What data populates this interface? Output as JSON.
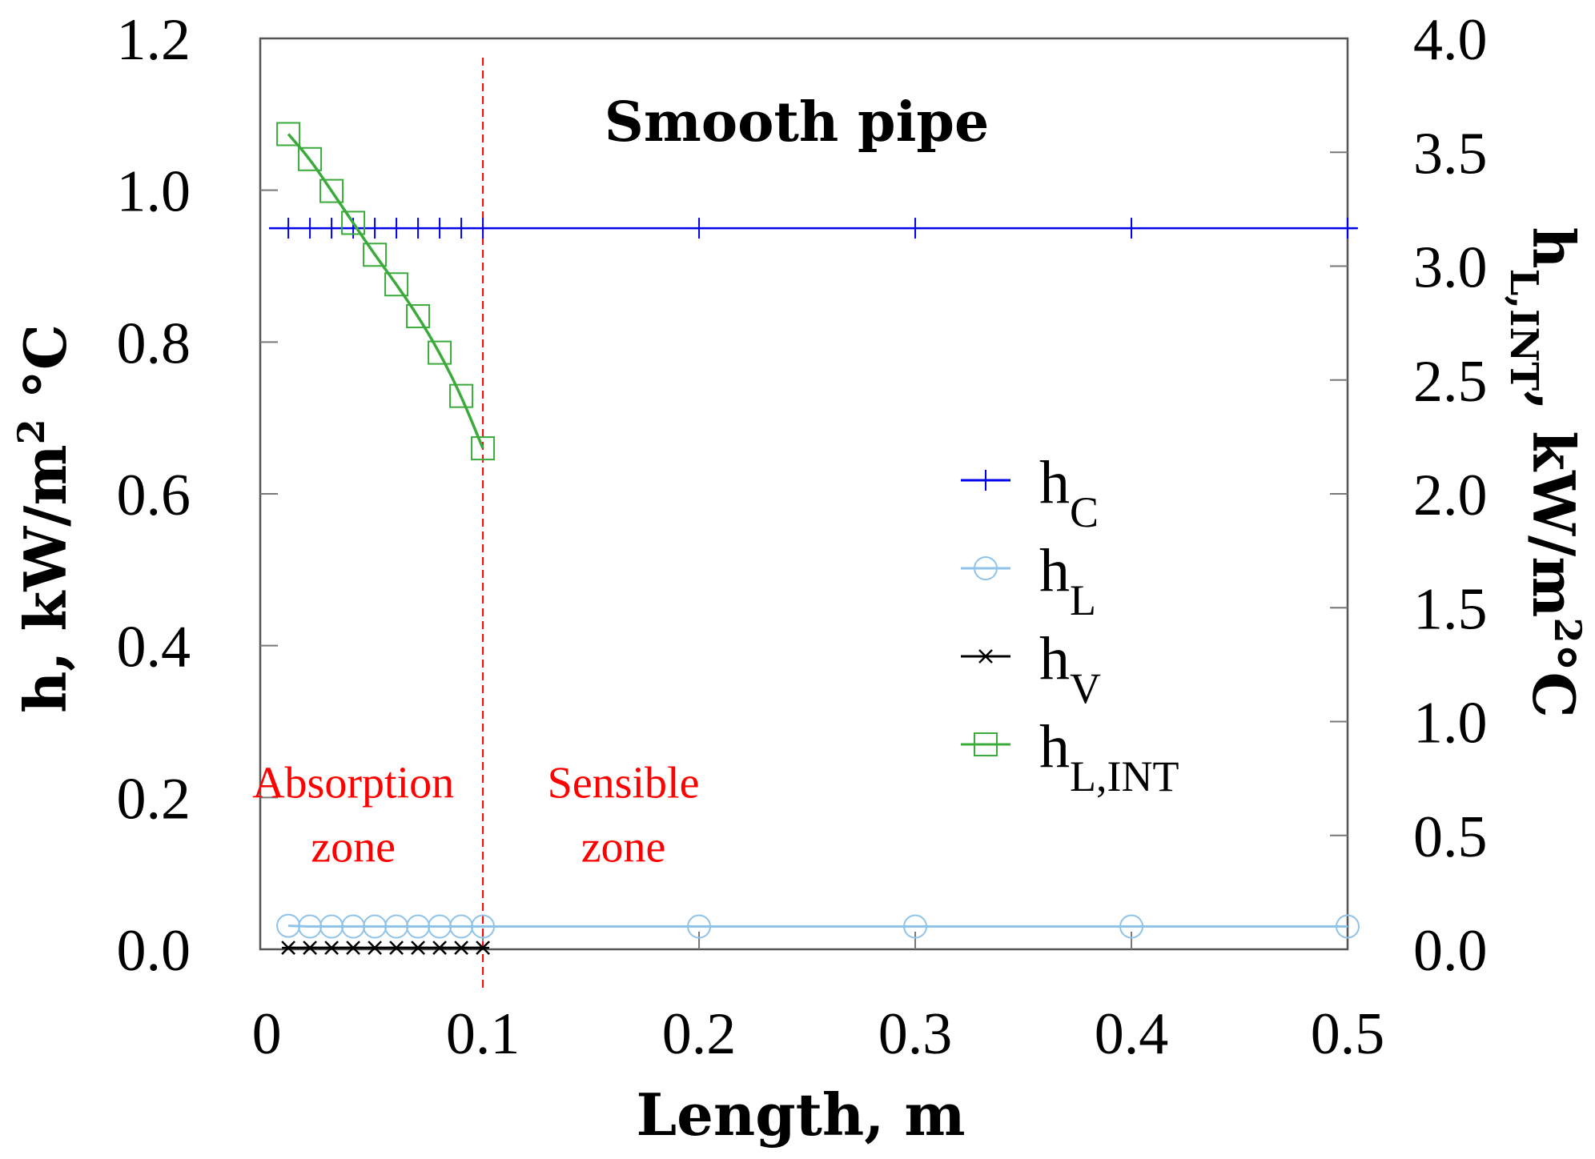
{
  "chart_data": {
    "type": "line",
    "title": "Smooth pipe",
    "xlabel": "Length, m",
    "ylabel": {
      "main": "h, kW/m",
      "sup": "2",
      "end": " °C"
    },
    "y2label": {
      "main": "h",
      "sub": "L,INT",
      "mid": ", kW/m",
      "sup": "2",
      "end": "°C"
    },
    "xlim": [
      -0.003,
      0.5
    ],
    "ylim": [
      0,
      1.2
    ],
    "y2lim": [
      0,
      4.0
    ],
    "x_ticks": [
      0,
      0.1,
      0.2,
      0.3,
      0.4,
      0.5
    ],
    "x_tick_labels": [
      "0",
      "0.1",
      "0.2",
      "0.3",
      "0.4",
      "0.5"
    ],
    "y_ticks": [
      0,
      0.2,
      0.4,
      0.6,
      0.8,
      1.0,
      1.2
    ],
    "y_tick_labels": [
      "0.0",
      "0.2",
      "0.4",
      "0.6",
      "0.8",
      "1.0",
      "1.2"
    ],
    "y2_ticks": [
      0,
      0.5,
      1.0,
      1.5,
      2.0,
      2.5,
      3.0,
      3.5,
      4.0
    ],
    "y2_tick_labels": [
      "0.0",
      "0.5",
      "1.0",
      "1.5",
      "2.0",
      "2.5",
      "3.0",
      "3.5",
      "4.0"
    ],
    "series": [
      {
        "name": "h_C",
        "label_main": "h",
        "label_sub": "C",
        "axis": "left",
        "marker": "plus",
        "color": "#0000ee",
        "x": [
          0.01,
          0.02,
          0.03,
          0.04,
          0.05,
          0.06,
          0.07,
          0.08,
          0.09,
          0.1,
          0.2,
          0.3,
          0.4,
          0.5
        ],
        "values": [
          0.95,
          0.95,
          0.95,
          0.95,
          0.95,
          0.95,
          0.95,
          0.95,
          0.95,
          0.95,
          0.95,
          0.95,
          0.95,
          0.95
        ]
      },
      {
        "name": "h_L",
        "label_main": "h",
        "label_sub": "L",
        "axis": "left",
        "marker": "circle",
        "color": "#8fc3e9",
        "x": [
          0.01,
          0.02,
          0.03,
          0.04,
          0.05,
          0.06,
          0.07,
          0.08,
          0.09,
          0.1,
          0.2,
          0.3,
          0.4,
          0.5
        ],
        "values": [
          0.031,
          0.03,
          0.03,
          0.03,
          0.03,
          0.03,
          0.03,
          0.03,
          0.03,
          0.03,
          0.03,
          0.03,
          0.03,
          0.03
        ]
      },
      {
        "name": "h_V",
        "label_main": "h",
        "label_sub": "V",
        "axis": "left",
        "marker": "star",
        "color": "#000000",
        "x": [
          0.01,
          0.02,
          0.03,
          0.04,
          0.05,
          0.06,
          0.07,
          0.08,
          0.09,
          0.1
        ],
        "values": [
          0.002,
          0.002,
          0.002,
          0.002,
          0.002,
          0.002,
          0.002,
          0.002,
          0.002,
          0.002
        ]
      },
      {
        "name": "h_L,INT",
        "label_main": "h",
        "label_sub": "L,INT",
        "axis": "right",
        "marker": "square",
        "color": "#3aaa3a",
        "x": [
          0.01,
          0.02,
          0.03,
          0.04,
          0.05,
          0.06,
          0.07,
          0.08,
          0.09,
          0.1
        ],
        "values": [
          3.58,
          3.47,
          3.33,
          3.19,
          3.05,
          2.92,
          2.78,
          2.62,
          2.43,
          2.2
        ]
      }
    ],
    "vline": {
      "x": 0.1,
      "color": "#ff0000",
      "style": "dashed"
    },
    "annotations": [
      {
        "lines": [
          "Absorption",
          "zone"
        ],
        "x": 0.04,
        "y": 0.2,
        "color": "#ff0000"
      },
      {
        "lines": [
          "Sensible",
          "zone"
        ],
        "x": 0.165,
        "y": 0.2,
        "color": "#ff0000"
      }
    ],
    "legend_position": "center-right"
  }
}
